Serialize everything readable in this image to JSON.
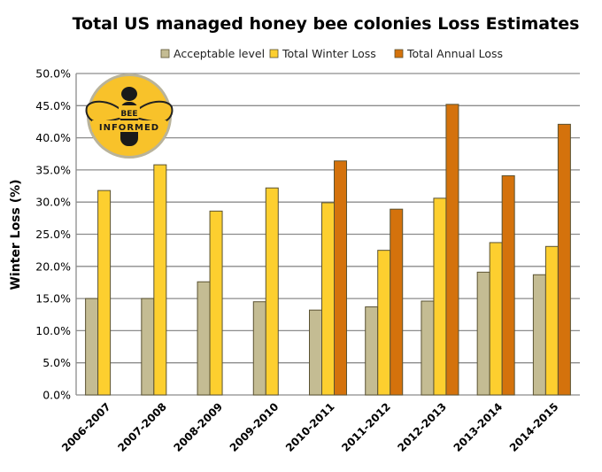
{
  "chart_data": {
    "type": "bar",
    "title": "Total US managed honey bee colonies Loss Estimates",
    "xlabel": "",
    "ylabel": "Winter Loss (%)",
    "ylim": [
      0,
      50
    ],
    "ytick_step": 5,
    "yticks": [
      "0.0%",
      "5.0%",
      "10.0%",
      "15.0%",
      "20.0%",
      "25.0%",
      "30.0%",
      "35.0%",
      "40.0%",
      "45.0%",
      "50.0%"
    ],
    "grid": true,
    "legend_position": "top",
    "categories": [
      "2006-2007",
      "2007-2008",
      "2008-2009",
      "2009-2010",
      "2010-2011",
      "2011-2012",
      "2012-2013",
      "2013-2014",
      "2014-2015"
    ],
    "series": [
      {
        "name": "Acceptable level",
        "color": "#c4bc93",
        "values": [
          15.0,
          15.0,
          17.6,
          14.5,
          13.2,
          13.7,
          14.6,
          19.1,
          18.7
        ]
      },
      {
        "name": "Total Winter Loss",
        "color": "#fdcf2f",
        "values": [
          31.8,
          35.8,
          28.6,
          32.2,
          29.9,
          22.5,
          30.6,
          23.7,
          23.1
        ]
      },
      {
        "name": "Total Annual Loss",
        "color": "#d4720c",
        "values": [
          null,
          null,
          null,
          null,
          36.4,
          28.9,
          45.2,
          34.1,
          42.1
        ]
      }
    ],
    "logo": {
      "text_top": "BEE",
      "text_bottom": "INFORMED"
    }
  }
}
